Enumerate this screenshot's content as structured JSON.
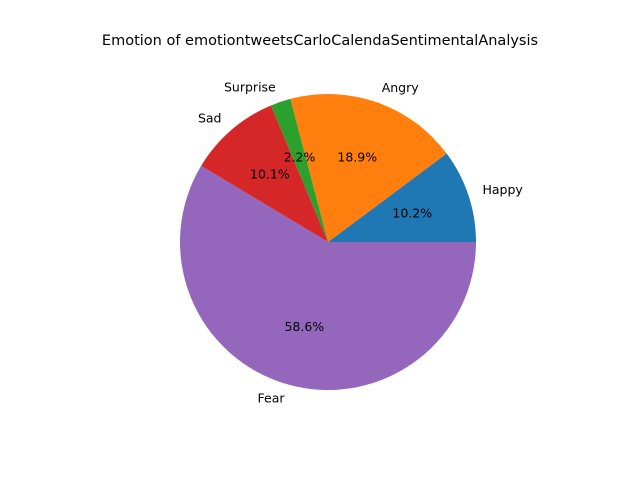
{
  "chart_data": {
    "type": "pie",
    "title": "Emotion of emotiontweetsCarloCalendaSentimentalAnalysis",
    "slices": [
      {
        "label": "Happy",
        "value": 10.2,
        "pct_label": "10.2%",
        "color": "#1f77b4"
      },
      {
        "label": "Angry",
        "value": 18.9,
        "pct_label": "18.9%",
        "color": "#ff7f0e"
      },
      {
        "label": "Surprise",
        "value": 2.2,
        "pct_label": "2.2%",
        "color": "#2ca02c"
      },
      {
        "label": "Sad",
        "value": 10.1,
        "pct_label": "10.1%",
        "color": "#d62728"
      },
      {
        "label": "Fear",
        "value": 58.6,
        "pct_label": "58.6%",
        "color": "#9467bd"
      }
    ],
    "start_angle_deg": 0,
    "direction": "counterclockwise",
    "legend": "none"
  }
}
